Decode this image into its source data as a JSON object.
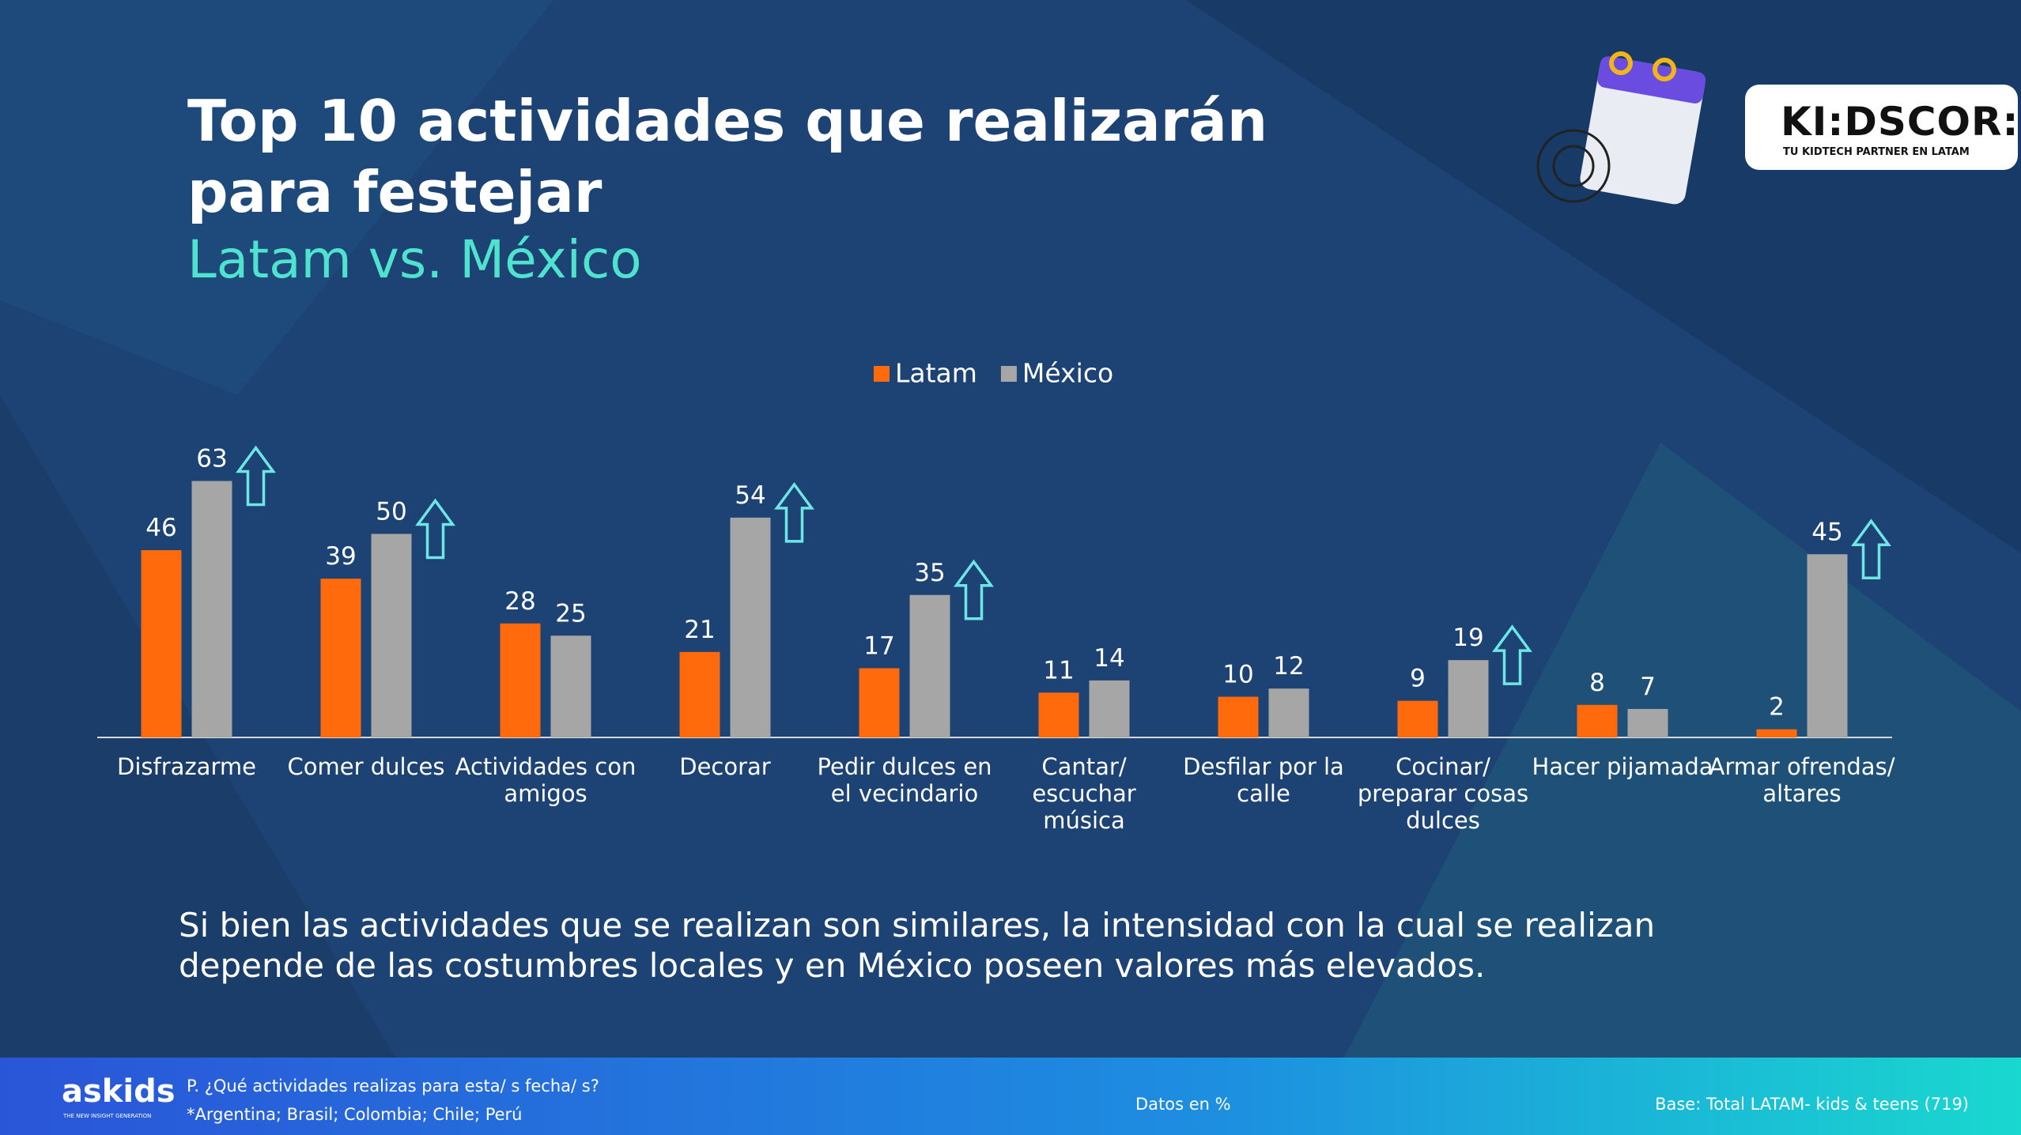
{
  "chart_data": {
    "type": "bar",
    "title": "Top 10 actividades que realizarán para festejar",
    "subtitle": "Latam vs. México",
    "categories": [
      "Disfrazarme",
      "Comer dulces",
      "Actividades con amigos",
      "Decorar",
      "Pedir dulces en el vecindario",
      "Cantar/ escuchar música",
      "Desfilar por la calle",
      "Cocinar/ preparar cosas dulces",
      "Hacer pijamada",
      "Armar ofrendas/ altares"
    ],
    "series": [
      {
        "name": "Latam",
        "color": "#ff6a0d",
        "values": [
          46,
          39,
          28,
          21,
          17,
          11,
          10,
          9,
          8,
          2
        ]
      },
      {
        "name": "México",
        "color": "#a6a6a6",
        "values": [
          63,
          50,
          25,
          54,
          35,
          14,
          12,
          19,
          7,
          45
        ]
      }
    ],
    "highlighted": [
      "Disfrazarme",
      "Comer dulces",
      "Decorar",
      "Pedir dulces en el vecindario",
      "Cocinar/ preparar cosas dulces",
      "Armar ofrendas/ altares"
    ],
    "legend": "top",
    "note": "Si bien las actividades que se realizan son similares, la intensidad con la cual se realizan depende de las costumbres locales y en México poseen valores más elevados."
  },
  "logo": {
    "name": "KI:DSCOR:P",
    "tagline": "TU KIDTECH PARTNER EN LATAM"
  },
  "footer": {
    "brand": "askids",
    "brand_tagline": "THE NEW INSIGHT GENERATION",
    "question": "P. ¿Qué actividades realizas para esta/ s fecha/ s?",
    "countries": "*Argentina; Brasil; Colombia; Chile; Perú",
    "units": "Datos en %",
    "base": "Base: Total LATAM- kids & teens (719)"
  }
}
